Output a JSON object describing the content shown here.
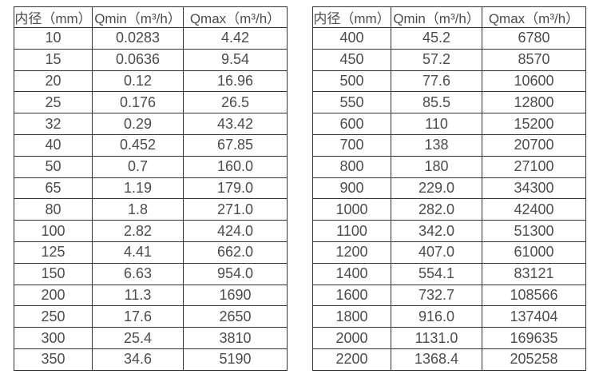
{
  "page": {
    "background_color": "#ffffff",
    "text_color": "#4c4c4c",
    "border_color": "#343434"
  },
  "chart_data": [
    {
      "type": "table",
      "title": "",
      "headers": [
        "内径（mm）",
        "Qmin（m³/h）",
        "Qmax（m³/h）"
      ],
      "rows": [
        [
          "10",
          "0.0283",
          "4.42"
        ],
        [
          "15",
          "0.0636",
          "9.54"
        ],
        [
          "20",
          "0.12",
          "16.96"
        ],
        [
          "25",
          "0.176",
          "26.5"
        ],
        [
          "32",
          "0.29",
          "43.42"
        ],
        [
          "40",
          "0.452",
          "67.85"
        ],
        [
          "50",
          "0.7",
          "160.0"
        ],
        [
          "65",
          "1.19",
          "179.0"
        ],
        [
          "80",
          "1.8",
          "271.0"
        ],
        [
          "100",
          "2.82",
          "424.0"
        ],
        [
          "125",
          "4.41",
          "662.0"
        ],
        [
          "150",
          "6.63",
          "954.0"
        ],
        [
          "200",
          "11.3",
          "1690"
        ],
        [
          "250",
          "17.6",
          "2650"
        ],
        [
          "300",
          "25.4",
          "3810"
        ],
        [
          "350",
          "34.6",
          "5190"
        ]
      ]
    },
    {
      "type": "table",
      "title": "",
      "headers": [
        "内径（mm）",
        "Qmin（m³/h）",
        "Qmax（m³/h）"
      ],
      "rows": [
        [
          "400",
          "45.2",
          "6780"
        ],
        [
          "450",
          "57.2",
          "8570"
        ],
        [
          "500",
          "77.6",
          "10600"
        ],
        [
          "550",
          "85.5",
          "12800"
        ],
        [
          "600",
          "110",
          "15200"
        ],
        [
          "700",
          "138",
          "20700"
        ],
        [
          "800",
          "180",
          "27100"
        ],
        [
          "900",
          "229.0",
          "34300"
        ],
        [
          "1000",
          "282.0",
          "42400"
        ],
        [
          "1100",
          "342.0",
          "51300"
        ],
        [
          "1200",
          "407.0",
          "61000"
        ],
        [
          "1400",
          "554.1",
          "83121"
        ],
        [
          "1600",
          "732.7",
          "108566"
        ],
        [
          "1800",
          "916.0",
          "137404"
        ],
        [
          "2000",
          "1131.0",
          "169635"
        ],
        [
          "2200",
          "1368.4",
          "205258"
        ]
      ]
    }
  ]
}
